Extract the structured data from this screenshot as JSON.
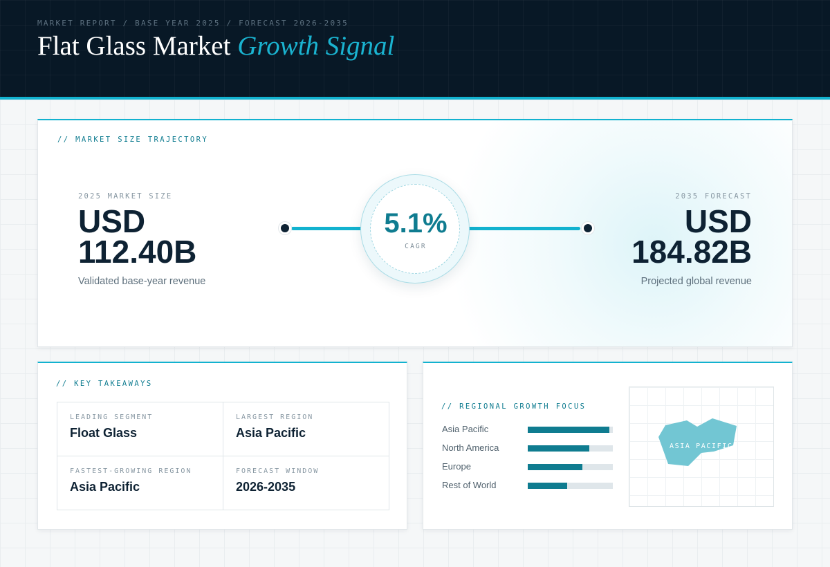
{
  "header": {
    "crumb": "MARKET REPORT / BASE YEAR 2025 / FORECAST 2026-2035",
    "title_main": "Flat Glass Market",
    "title_accent": "Growth Signal"
  },
  "trajectory": {
    "label": "// MARKET SIZE TRAJECTORY",
    "start": {
      "label": "2025 MARKET SIZE",
      "currency": "USD",
      "value": "112.40B",
      "sub": "Validated base-year revenue"
    },
    "end": {
      "label": "2035 FORECAST",
      "currency": "USD",
      "value": "184.82B",
      "sub": "Projected global revenue"
    },
    "cagr": {
      "value": "5.1%",
      "label": "CAGR"
    }
  },
  "takeaways": {
    "label": "// KEY TAKEAWAYS",
    "cells": [
      {
        "label": "LEADING SEGMENT",
        "value": "Float Glass"
      },
      {
        "label": "LARGEST REGION",
        "value": "Asia Pacific"
      },
      {
        "label": "FASTEST-GROWING REGION",
        "value": "Asia Pacific"
      },
      {
        "label": "FORECAST WINDOW",
        "value": "2026-2035"
      }
    ]
  },
  "regional": {
    "label": "// REGIONAL GROWTH FOCUS",
    "bars": [
      {
        "name": "Asia Pacific",
        "level": 0.96
      },
      {
        "name": "North America",
        "level": 0.72
      },
      {
        "name": "Europe",
        "level": 0.64
      },
      {
        "name": "Rest of World",
        "level": 0.46
      }
    ],
    "map_label": "ASIA PACIFIC",
    "map_color": "#72c6d3"
  },
  "colors": {
    "accent": "#12b2cf",
    "dark": "#081826",
    "teal": "#0f7c90"
  }
}
